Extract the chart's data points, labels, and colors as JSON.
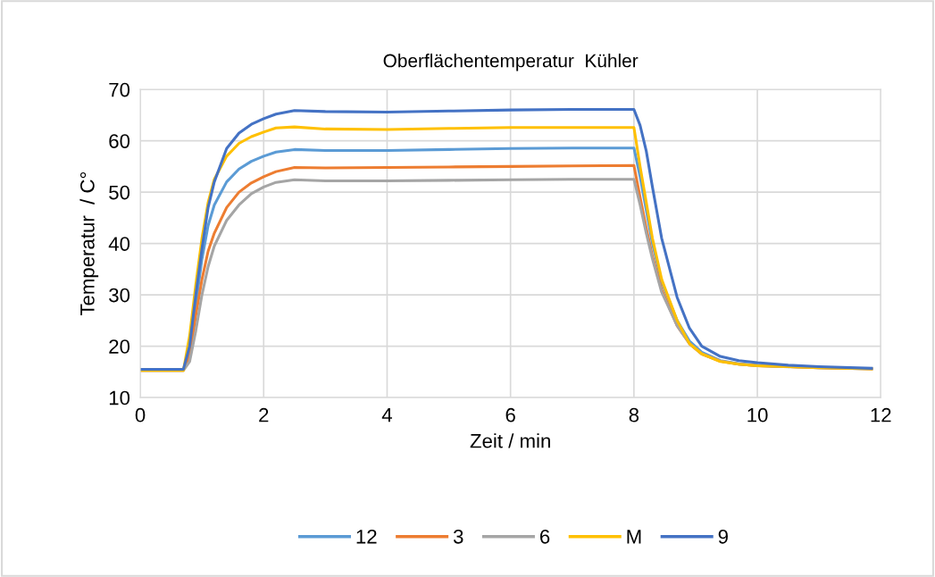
{
  "chart_data": {
    "type": "line",
    "title": "Oberflächentemperatur  Kühler",
    "xlabel": "Zeit / min",
    "ylabel": "Temperatur  / C°",
    "x": [
      0,
      0.7,
      0.8,
      0.9,
      1.0,
      1.1,
      1.2,
      1.4,
      1.6,
      1.8,
      2.0,
      2.2,
      2.5,
      3,
      4,
      5,
      6,
      7,
      8,
      8.1,
      8.2,
      8.3,
      8.45,
      8.7,
      8.9,
      9.1,
      9.4,
      9.7,
      10,
      10.5,
      11,
      11.85
    ],
    "series": [
      {
        "name": "12",
        "color": "#5b9bd5",
        "values": [
          15.4,
          15.4,
          19,
          28,
          37,
          43.5,
          47.5,
          52,
          54.5,
          56,
          57,
          57.8,
          58.3,
          58.1,
          58.1,
          58.3,
          58.5,
          58.6,
          58.6,
          53,
          46.5,
          40,
          32.5,
          25,
          21,
          18.8,
          17.2,
          16.6,
          16.3,
          16,
          15.8,
          15.6
        ]
      },
      {
        "name": "3",
        "color": "#ed7d31",
        "values": [
          15.3,
          15.3,
          18,
          26,
          33,
          38.5,
          42,
          47,
          50,
          51.8,
          53,
          54,
          54.8,
          54.7,
          54.8,
          54.9,
          55,
          55.1,
          55.2,
          49,
          43,
          37.5,
          31,
          24,
          20.5,
          18.5,
          17.1,
          16.5,
          16.2,
          16,
          15.8,
          15.6
        ]
      },
      {
        "name": "6",
        "color": "#a5a5a5",
        "values": [
          15.3,
          15.3,
          17,
          23,
          30,
          35.5,
          39.5,
          44.5,
          47.5,
          49.7,
          51,
          51.9,
          52.4,
          52.2,
          52.2,
          52.3,
          52.4,
          52.5,
          52.5,
          47.5,
          42,
          37,
          30.5,
          24,
          20.5,
          18.5,
          17.1,
          16.5,
          16.2,
          16,
          null,
          null
        ]
      },
      {
        "name": "M",
        "color": "#ffc000",
        "values": [
          15.3,
          15.3,
          22,
          32,
          41,
          48,
          52.5,
          57,
          59.5,
          60.8,
          61.7,
          62.5,
          62.7,
          62.3,
          62.2,
          62.4,
          62.6,
          62.6,
          62.6,
          55,
          48,
          41,
          33,
          25,
          20.5,
          18.5,
          17,
          16.5,
          16.2,
          16,
          15.8,
          15.6
        ]
      },
      {
        "name": "9",
        "color": "#4472c4",
        "values": [
          15.5,
          15.5,
          20,
          30,
          39,
          47,
          52,
          58.5,
          61.5,
          63.2,
          64.3,
          65.2,
          65.9,
          65.7,
          65.6,
          65.8,
          66,
          66.1,
          66.1,
          63,
          58,
          51,
          41,
          29.5,
          23.5,
          20,
          18,
          17.2,
          16.8,
          16.3,
          16.0,
          15.7
        ]
      }
    ],
    "xlim": [
      0,
      12
    ],
    "xticks": [
      0,
      2,
      4,
      6,
      8,
      10,
      12
    ],
    "ylim": [
      10,
      70
    ],
    "yticks": [
      10,
      20,
      30,
      40,
      50,
      60,
      70
    ],
    "grid": true,
    "legend": "bottom",
    "marker": "none",
    "line_style": "solid"
  }
}
